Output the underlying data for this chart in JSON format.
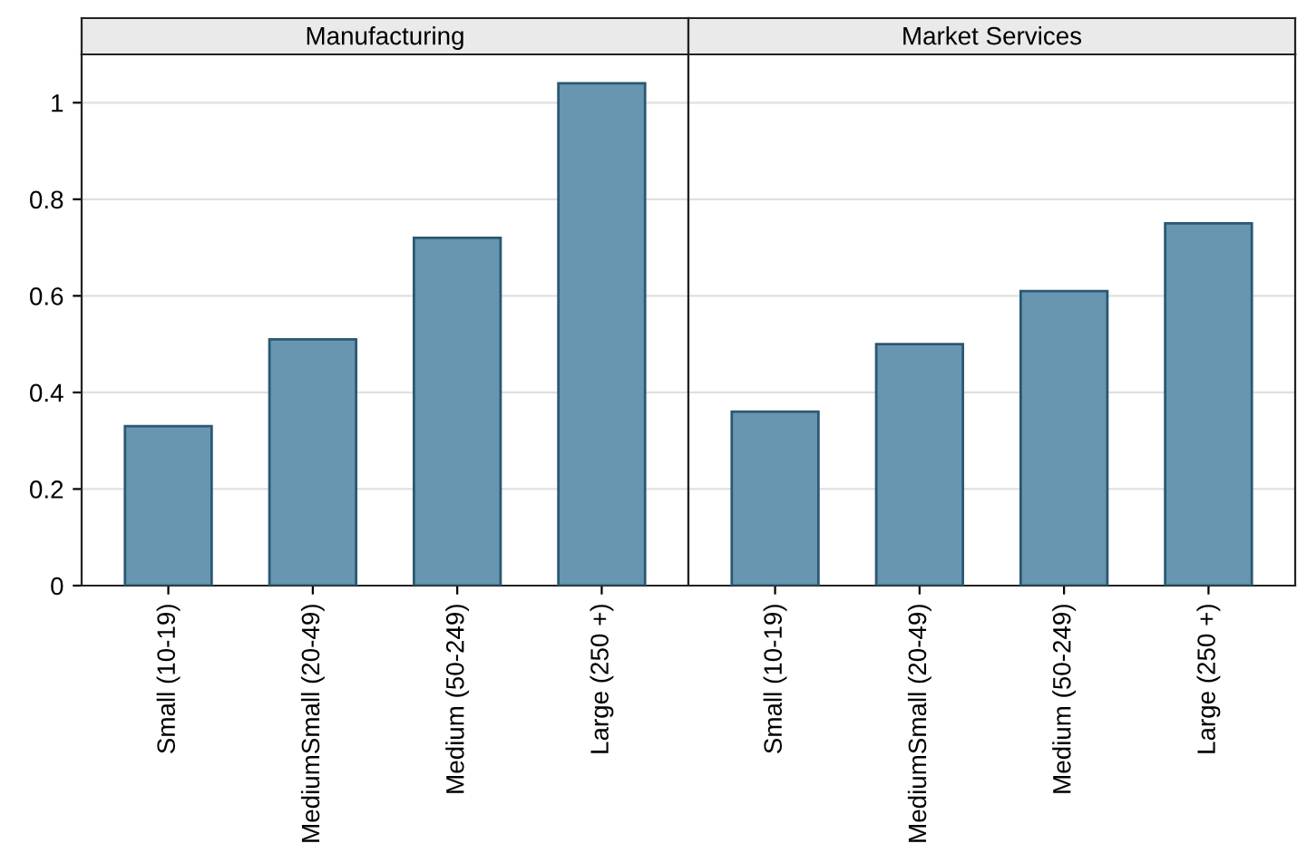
{
  "chart_data": [
    {
      "type": "bar",
      "title": "Manufacturing",
      "categories": [
        "Small (10-19)",
        "MediumSmall (20-49)",
        "Medium (50-249)",
        "Large (250 +)"
      ],
      "values": [
        0.33,
        0.51,
        0.72,
        1.04
      ],
      "color": "#6896b0",
      "ylim": [
        0,
        1.1
      ],
      "yticks": [
        0,
        0.2,
        0.4,
        0.6,
        0.8,
        1
      ],
      "grid": "y"
    },
    {
      "type": "bar",
      "title": "Market Services",
      "categories": [
        "Small (10-19)",
        "MediumSmall (20-49)",
        "Medium (50-249)",
        "Large (250 +)"
      ],
      "values": [
        0.36,
        0.5,
        0.61,
        0.75
      ],
      "color": "#6896b0",
      "ylim": [
        0,
        1.1
      ],
      "yticks": [
        0,
        0.2,
        0.4,
        0.6,
        0.8,
        1
      ],
      "grid": "y",
      "tick_labels": "x"
    }
  ]
}
